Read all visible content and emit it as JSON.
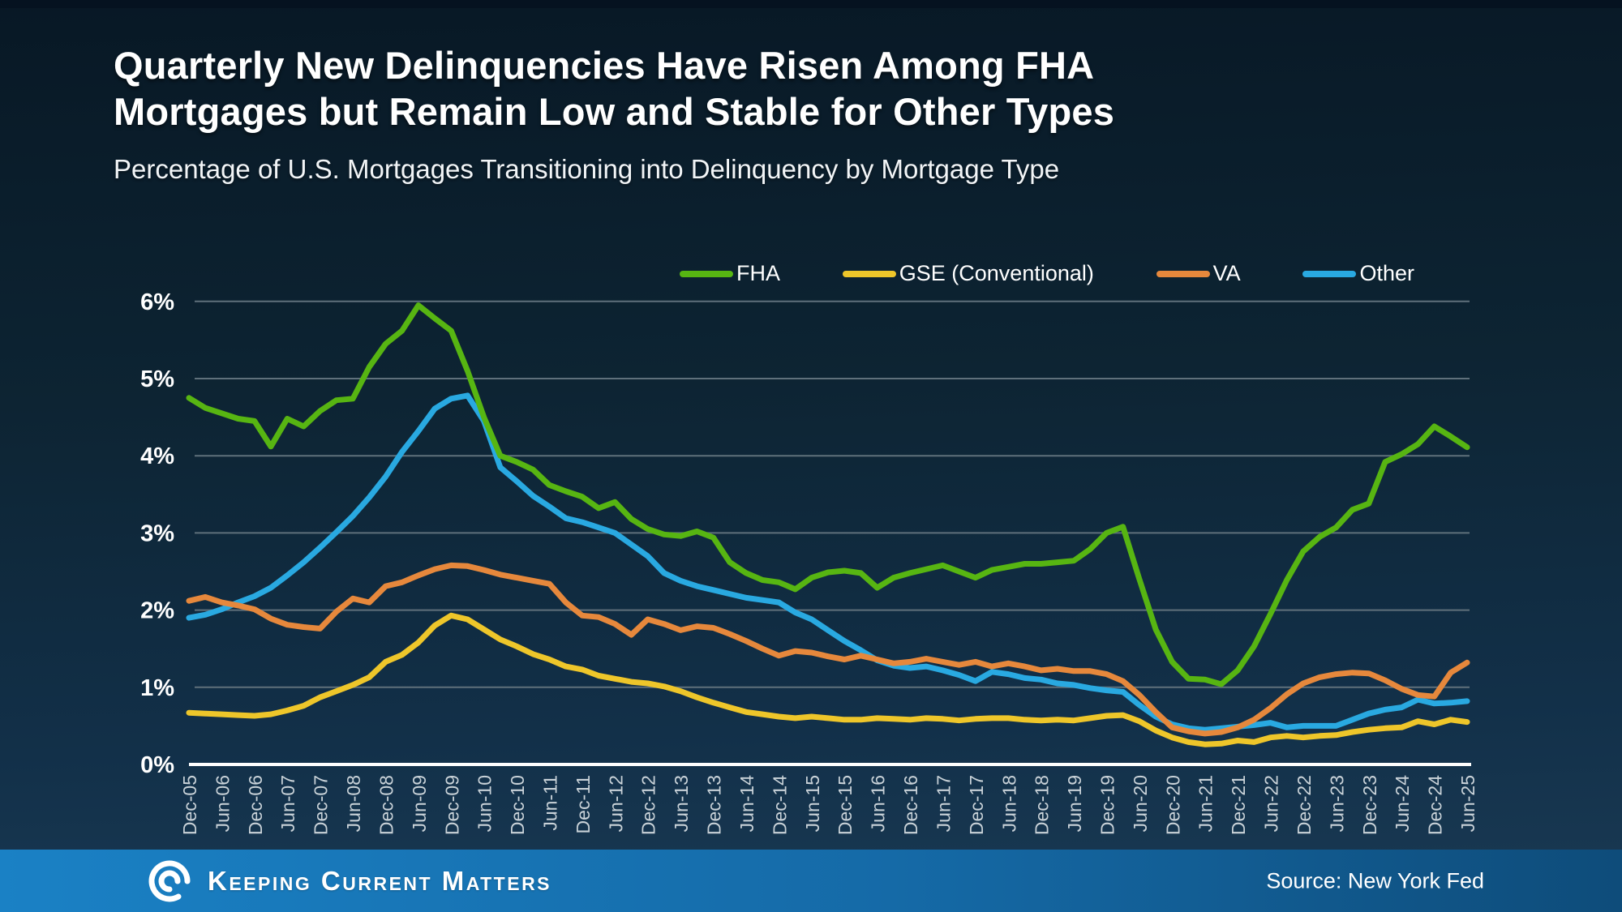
{
  "colors": {
    "fha": "#57b512",
    "gse": "#eec62a",
    "va": "#e6883c",
    "other": "#29a9e1",
    "grid": "#5f707b",
    "axis": "#ffffff",
    "background": "#0d2433",
    "footer_left": "#1a81c5",
    "footer_right": "#0e4c7a"
  },
  "footer": {
    "brand": "Keeping Current Matters",
    "logo_icon": "kcm-swirl-icon",
    "source": "Source: New York Fed"
  },
  "chart_data": {
    "type": "line",
    "title_line1": "Quarterly New Delinquencies Have Risen Among FHA",
    "title_line2": "Mortgages but Remain Low and Stable for Other Types",
    "subtitle": "Percentage of U.S. Mortgages Transitioning into Delinquency by Mortgage Type",
    "xlabel": "",
    "ylabel": "",
    "ylim": [
      0,
      6
    ],
    "grid": true,
    "legend_position": "top",
    "y_ticks": [
      "0%",
      "1%",
      "2%",
      "3%",
      "4%",
      "5%",
      "6%"
    ],
    "x_labels": [
      "Dec-05",
      "Jun-06",
      "Dec-06",
      "Jun-07",
      "Dec-07",
      "Jun-08",
      "Dec-08",
      "Jun-09",
      "Dec-09",
      "Jun-10",
      "Dec-10",
      "Jun-11",
      "Dec-11",
      "Jun-12",
      "Dec-12",
      "Jun-13",
      "Dec-13",
      "Jun-14",
      "Dec-14",
      "Jun-15",
      "Dec-15",
      "Jun-16",
      "Dec-16",
      "Jun-17",
      "Dec-17",
      "Jun-18",
      "Dec-18",
      "Jun-19",
      "Dec-19",
      "Jun-20",
      "Dec-20",
      "Jun-21",
      "Dec-21",
      "Jun-22",
      "Dec-22",
      "Jun-23",
      "Dec-23",
      "Jun-24",
      "Dec-24",
      "Jun-25"
    ],
    "points_per_label": 2,
    "frequency": "quarterly",
    "series": [
      {
        "name": "FHA",
        "color_key": "fha",
        "values": [
          4.75,
          4.62,
          4.55,
          4.48,
          4.45,
          4.12,
          4.48,
          4.38,
          4.58,
          4.72,
          4.74,
          5.15,
          5.45,
          5.62,
          5.95,
          5.78,
          5.62,
          5.1,
          4.5,
          4.0,
          3.92,
          3.82,
          3.62,
          3.54,
          3.47,
          3.32,
          3.4,
          3.18,
          3.05,
          2.98,
          2.96,
          3.02,
          2.94,
          2.62,
          2.48,
          2.39,
          2.36,
          2.27,
          2.42,
          2.49,
          2.51,
          2.48,
          2.29,
          2.42,
          2.48,
          2.53,
          2.58,
          2.5,
          2.42,
          2.52,
          2.56,
          2.6,
          2.6,
          2.62,
          2.64,
          2.79,
          3.0,
          3.08,
          2.4,
          1.75,
          1.33,
          1.11,
          1.1,
          1.04,
          1.22,
          1.53,
          1.95,
          2.39,
          2.76,
          2.95,
          3.07,
          3.3,
          3.38,
          3.92,
          4.02,
          4.15,
          4.38,
          4.25,
          4.11
        ]
      },
      {
        "name": "GSE (Conventional)",
        "color_key": "gse",
        "values": [
          0.67,
          0.66,
          0.65,
          0.64,
          0.63,
          0.65,
          0.7,
          0.76,
          0.87,
          0.95,
          1.03,
          1.13,
          1.33,
          1.42,
          1.58,
          1.8,
          1.93,
          1.88,
          1.75,
          1.62,
          1.53,
          1.43,
          1.36,
          1.27,
          1.23,
          1.15,
          1.11,
          1.07,
          1.05,
          1.01,
          0.95,
          0.87,
          0.8,
          0.74,
          0.68,
          0.65,
          0.62,
          0.6,
          0.62,
          0.6,
          0.58,
          0.58,
          0.6,
          0.59,
          0.58,
          0.6,
          0.59,
          0.57,
          0.59,
          0.6,
          0.6,
          0.58,
          0.57,
          0.58,
          0.57,
          0.6,
          0.63,
          0.64,
          0.56,
          0.44,
          0.35,
          0.29,
          0.26,
          0.27,
          0.31,
          0.29,
          0.35,
          0.37,
          0.35,
          0.37,
          0.38,
          0.42,
          0.45,
          0.47,
          0.48,
          0.56,
          0.52,
          0.58,
          0.55
        ]
      },
      {
        "name": "VA",
        "color_key": "va",
        "values": [
          2.12,
          2.17,
          2.1,
          2.06,
          2.01,
          1.89,
          1.81,
          1.78,
          1.76,
          1.98,
          2.15,
          2.1,
          2.31,
          2.36,
          2.45,
          2.53,
          2.58,
          2.57,
          2.52,
          2.46,
          2.42,
          2.38,
          2.34,
          2.1,
          1.93,
          1.91,
          1.82,
          1.68,
          1.88,
          1.82,
          1.74,
          1.79,
          1.77,
          1.69,
          1.6,
          1.5,
          1.41,
          1.47,
          1.45,
          1.4,
          1.36,
          1.41,
          1.36,
          1.31,
          1.33,
          1.37,
          1.33,
          1.29,
          1.33,
          1.27,
          1.31,
          1.27,
          1.22,
          1.24,
          1.21,
          1.21,
          1.17,
          1.08,
          0.9,
          0.68,
          0.48,
          0.43,
          0.4,
          0.42,
          0.48,
          0.58,
          0.73,
          0.91,
          1.05,
          1.13,
          1.17,
          1.19,
          1.18,
          1.09,
          0.98,
          0.9,
          0.88,
          1.19,
          1.32
        ]
      },
      {
        "name": "Other",
        "color_key": "other",
        "values": [
          1.9,
          1.94,
          2.01,
          2.1,
          2.18,
          2.29,
          2.45,
          2.62,
          2.81,
          3.01,
          3.22,
          3.46,
          3.73,
          4.05,
          4.32,
          4.61,
          4.74,
          4.78,
          4.45,
          3.85,
          3.67,
          3.48,
          3.34,
          3.19,
          3.14,
          3.07,
          3.0,
          2.85,
          2.7,
          2.48,
          2.38,
          2.31,
          2.26,
          2.21,
          2.16,
          2.13,
          2.1,
          1.97,
          1.88,
          1.74,
          1.6,
          1.48,
          1.35,
          1.28,
          1.25,
          1.27,
          1.22,
          1.16,
          1.08,
          1.2,
          1.17,
          1.12,
          1.1,
          1.05,
          1.03,
          0.99,
          0.96,
          0.94,
          0.77,
          0.62,
          0.52,
          0.47,
          0.45,
          0.47,
          0.49,
          0.51,
          0.54,
          0.48,
          0.5,
          0.5,
          0.5,
          0.58,
          0.66,
          0.71,
          0.74,
          0.84,
          0.79,
          0.8,
          0.82
        ]
      }
    ]
  }
}
